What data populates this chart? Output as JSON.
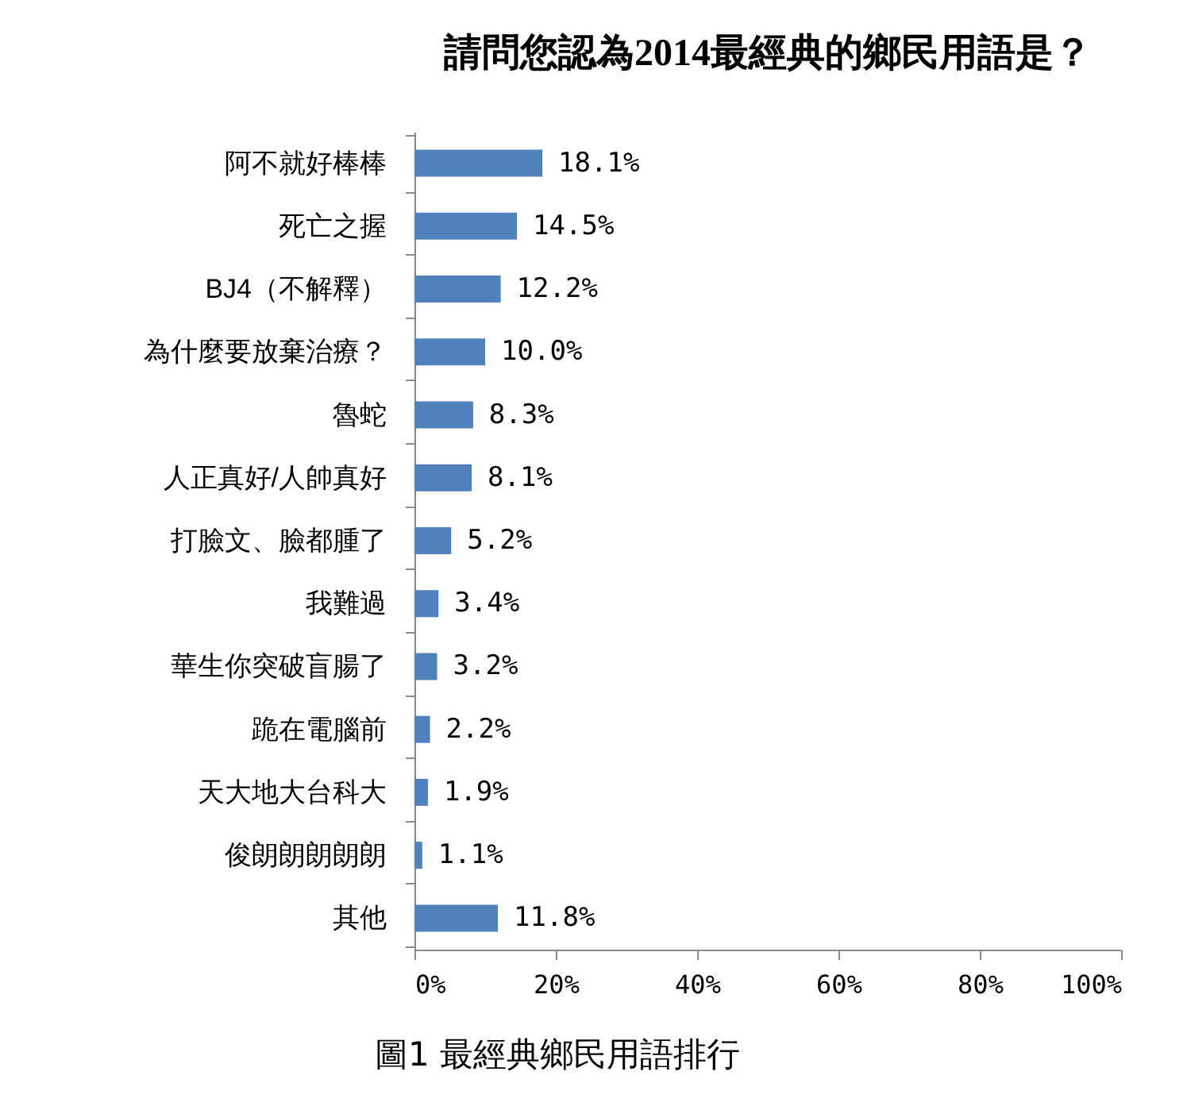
{
  "chart_data": {
    "type": "bar",
    "orientation": "horizontal",
    "title": "請問您認為2014最經典的鄉民用語是？",
    "categories": [
      "阿不就好棒棒",
      "死亡之握",
      "BJ4（不解釋）",
      "為什麼要放棄治療？",
      "魯蛇",
      "人正真好/人帥真好",
      "打臉文、臉都腫了",
      "我難過",
      "華生你突破盲腸了",
      "跪在電腦前",
      "天大地大台科大",
      "俊朗朗朗朗朗",
      "其他"
    ],
    "values": [
      18.1,
      14.5,
      12.2,
      10.0,
      8.3,
      8.1,
      5.2,
      3.4,
      3.2,
      2.2,
      1.9,
      1.1,
      11.8
    ],
    "value_labels": [
      "18.1%",
      "14.5%",
      "12.2%",
      "10.0%",
      "8.3%",
      "8.1%",
      "5.2%",
      "3.4%",
      "3.2%",
      "2.2%",
      "1.9%",
      "1.1%",
      "11.8%"
    ],
    "color": "#4f81bd",
    "xlim": [
      0,
      100
    ],
    "xticks": [
      {
        "value": 0,
        "label": "0%"
      },
      {
        "value": 20,
        "label": "20%"
      },
      {
        "value": 40,
        "label": "40%"
      },
      {
        "value": 60,
        "label": "60%"
      },
      {
        "value": 80,
        "label": "80%"
      },
      {
        "value": 100,
        "label": "100%"
      }
    ],
    "grid": false,
    "annotations": [
      "圖1 最經典鄉民用語排行"
    ]
  }
}
